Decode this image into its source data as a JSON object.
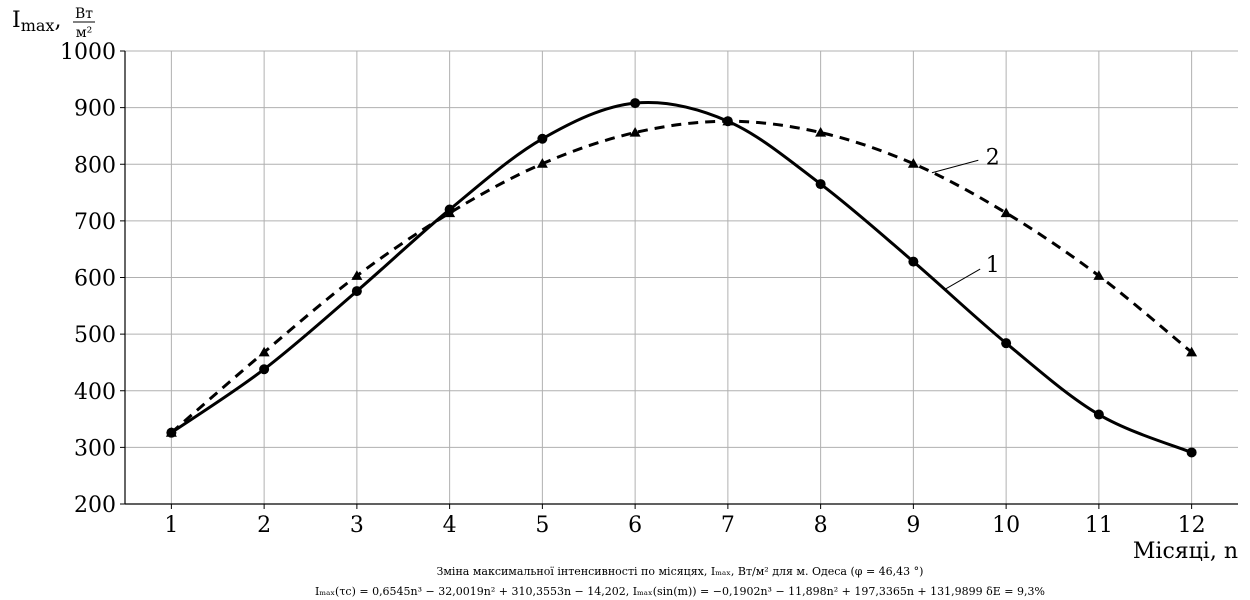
{
  "chart_data": {
    "type": "line",
    "ylabel": "I",
    "ylabel_sub": "max",
    "ylabel_sep": ",",
    "ylabel_unit_num": "Вт",
    "ylabel_unit_den": "м²",
    "xlabel": "Місяці, n",
    "x": [
      1,
      2,
      3,
      4,
      5,
      6,
      7,
      8,
      9,
      10,
      11,
      12
    ],
    "xlim": [
      0.5,
      12.5
    ],
    "ylim": [
      200,
      1000
    ],
    "yticks": [
      200,
      300,
      400,
      500,
      600,
      700,
      800,
      900,
      1000
    ],
    "xticks": [
      1,
      2,
      3,
      4,
      5,
      6,
      7,
      8,
      9,
      10,
      11,
      12
    ],
    "grid": true,
    "series": [
      {
        "name": "1",
        "style": "solid",
        "marker": "circle",
        "color": "#000000",
        "values": [
          326,
          438,
          576,
          720,
          845,
          908,
          876,
          765,
          628,
          484,
          358,
          291
        ]
      },
      {
        "name": "2",
        "style": "dashed",
        "marker": "triangle",
        "color": "#000000",
        "values": [
          326,
          468,
          603,
          714,
          801,
          856,
          876,
          856,
          801,
          714,
          603,
          468
        ]
      }
    ],
    "caption_line1": "Зміна максимальної інтенсивності по місяцях, Iₘₐₓ, Вт/м² для м. Одеса (φ = 46,43 °)",
    "caption_line2": "Iₘₐₓ(τc) = 0,6545n³ − 32,0019n² + 310,3553n − 14,202,        Iₘₐₓ(sin(m)) = −0,1902n³ − 11,898n² + 197,3365n + 131,9899      δE = 9,3%"
  }
}
